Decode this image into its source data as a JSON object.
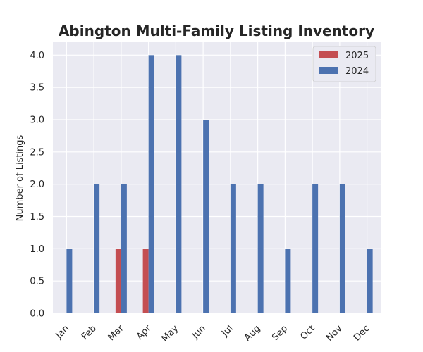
{
  "chart_data": {
    "type": "bar",
    "title": "Abington Multi-Family Listing Inventory",
    "xlabel": "",
    "ylabel": "Number of Listings",
    "categories": [
      "Jan",
      "Feb",
      "Mar",
      "Apr",
      "May",
      "Jun",
      "Jul",
      "Aug",
      "Sep",
      "Oct",
      "Nov",
      "Dec"
    ],
    "series": [
      {
        "name": "2025",
        "color": "#c44e52",
        "values": [
          0,
          0,
          1,
          1,
          0,
          0,
          0,
          0,
          0,
          0,
          0,
          0
        ]
      },
      {
        "name": "2024",
        "color": "#4c72b0",
        "values": [
          1,
          2,
          2,
          4,
          4,
          3,
          2,
          2,
          1,
          2,
          2,
          1
        ]
      }
    ],
    "ylim": [
      0,
      4.2
    ],
    "yticks": [
      "0.0",
      "0.5",
      "1.0",
      "1.5",
      "2.0",
      "2.5",
      "3.0",
      "3.5",
      "4.0"
    ],
    "grid": true,
    "legend_position": "top-right",
    "background_color": "#eaeaf2",
    "grid_color": "#ffffff"
  }
}
